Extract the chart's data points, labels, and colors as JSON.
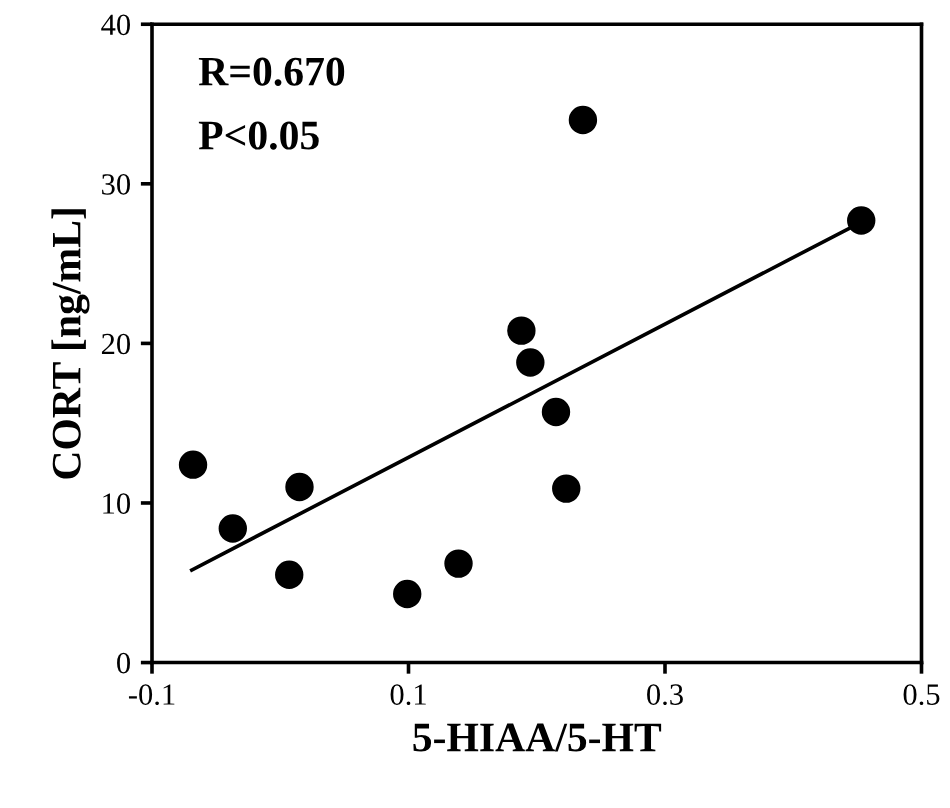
{
  "chart_data": {
    "type": "scatter",
    "xlabel": "5-HIAA/5-HT",
    "ylabel": "CORT [ng/mL]",
    "xlim": [
      -0.1,
      0.5
    ],
    "xticks": [
      -0.1,
      0.1,
      0.3,
      0.5
    ],
    "ylim": [
      0,
      40
    ],
    "yticks": [
      0,
      10,
      20,
      30,
      40
    ],
    "grid": false,
    "legend": false,
    "annotations": [
      "R=0.670",
      "P<0.05"
    ],
    "series": [
      {
        "color": "#000000",
        "marker": "circle",
        "x": [
          -0.068,
          -0.037,
          0.007,
          0.015,
          0.099,
          0.139,
          0.188,
          0.195,
          0.215,
          0.223,
          0.236,
          0.453
        ],
        "values": [
          12.4,
          8.4,
          5.5,
          11.0,
          4.3,
          6.2,
          20.8,
          18.8,
          15.7,
          10.9,
          34.0,
          27.7
        ]
      },
      {
        "type": "line",
        "color": "#000000",
        "marker": "none",
        "line_style": "solid",
        "x": [
          -0.069,
          0.453
        ],
        "values": [
          5.8,
          27.6
        ]
      }
    ]
  }
}
